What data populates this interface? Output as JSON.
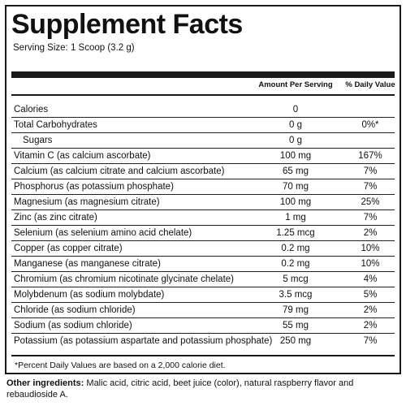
{
  "title": "Supplement Facts",
  "serving_size": "Serving Size: 1 Scoop (3.2 g)",
  "headers": {
    "amount": "Amount Per Serving",
    "daily_value": "% Daily Value"
  },
  "rows": [
    {
      "nutrient": "Calories",
      "amount": "0",
      "dv": ""
    },
    {
      "nutrient": "Total Carbohydrates",
      "amount": "0 g",
      "dv": "0%*"
    },
    {
      "nutrient": "Sugars",
      "amount": "0 g",
      "dv": ""
    },
    {
      "nutrient": "Vitamin C (as calcium ascorbate)",
      "amount": "100 mg",
      "dv": "167%"
    },
    {
      "nutrient": "Calcium (as calcium citrate and calcium ascorbate)",
      "amount": "65 mg",
      "dv": "7%"
    },
    {
      "nutrient": "Phosphorus (as potassium phosphate)",
      "amount": "70 mg",
      "dv": "7%"
    },
    {
      "nutrient": "Magnesium (as magnesium citrate)",
      "amount": "100 mg",
      "dv": "25%"
    },
    {
      "nutrient": "Zinc (as zinc citrate)",
      "amount": "1 mg",
      "dv": "7%"
    },
    {
      "nutrient": "Selenium (as selenium amino acid chelate)",
      "amount": "1.25 mcg",
      "dv": "2%"
    },
    {
      "nutrient": "Copper (as copper citrate)",
      "amount": "0.2 mg",
      "dv": "10%"
    },
    {
      "nutrient": "Manganese (as manganese citrate)",
      "amount": "0.2 mg",
      "dv": "10%"
    },
    {
      "nutrient": "Chromium (as chromium nicotinate glycinate chelate)",
      "amount": "5 mcg",
      "dv": "4%"
    },
    {
      "nutrient": "Molybdenum (as sodium molybdate)",
      "amount": "3.5 mcg",
      "dv": "5%"
    },
    {
      "nutrient": "Chloride (as sodium chloride)",
      "amount": "79 mg",
      "dv": "2%"
    },
    {
      "nutrient": "Sodium (as sodium chloride)",
      "amount": "55 mg",
      "dv": "2%"
    },
    {
      "nutrient": "Potassium (as potassium aspartate and potassium phosphate)",
      "amount": "250 mg",
      "dv": "7%"
    }
  ],
  "footnote": "*Percent Daily Values are based on a 2,000 calorie diet.",
  "other_ingredients": {
    "label": "Other ingredients:",
    "text": "Malic acid, citric acid, beet juice (color), natural raspberry flavor and rebaudioside A."
  }
}
